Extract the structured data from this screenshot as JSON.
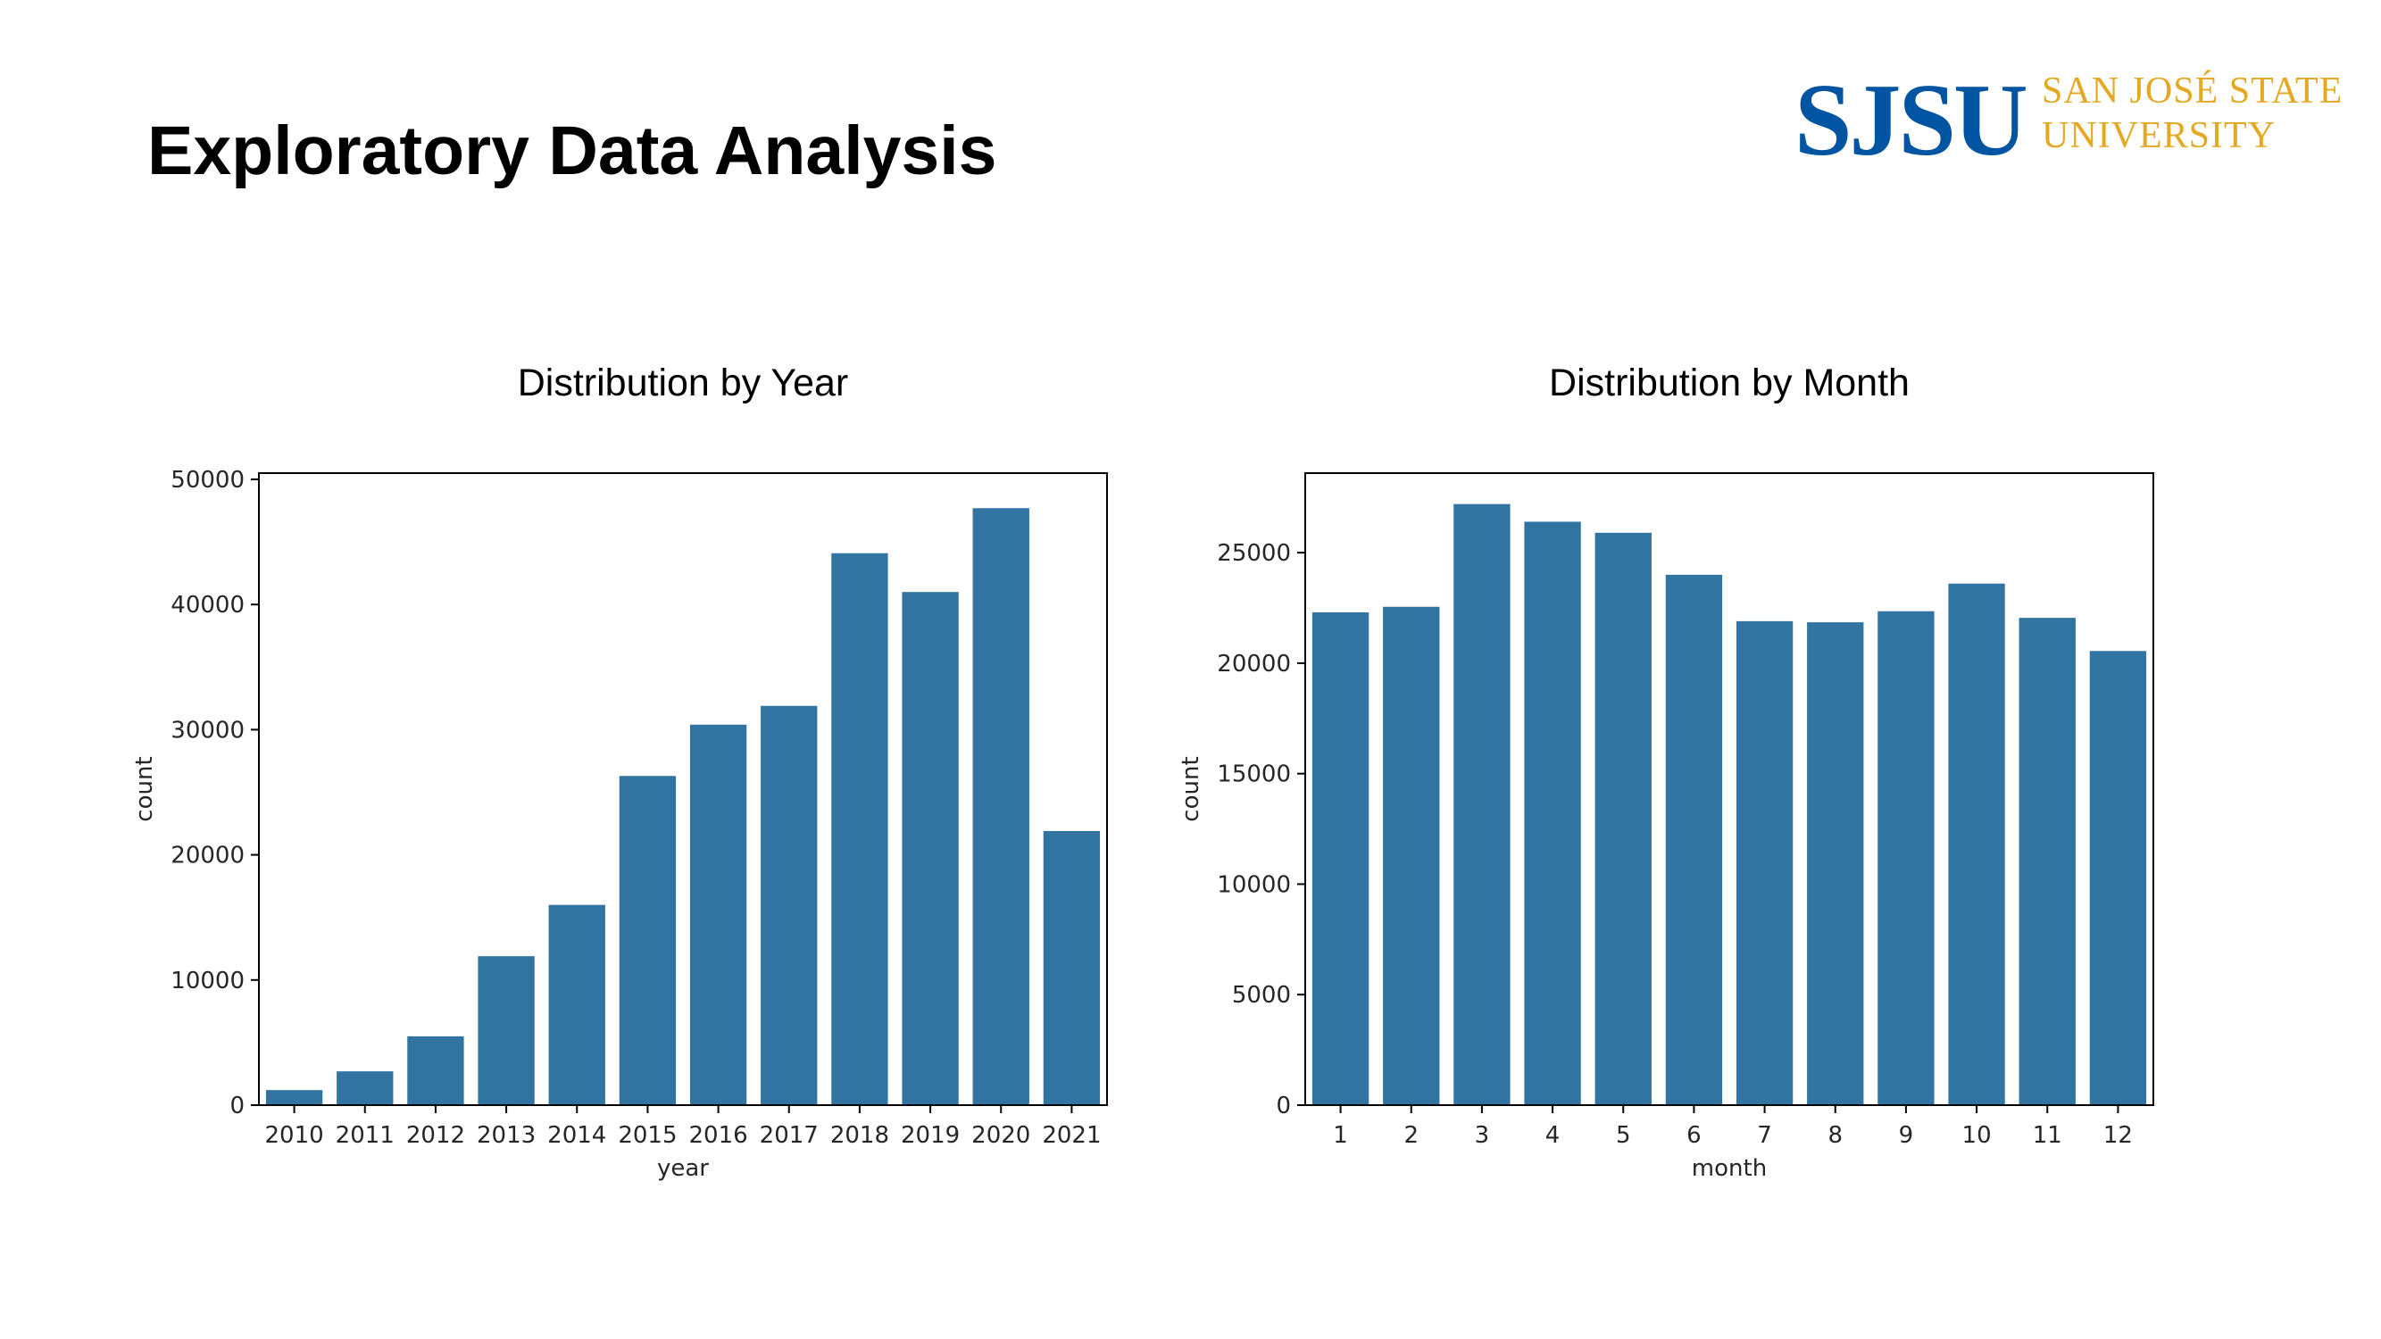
{
  "slide": {
    "title": "Exploratory Data Analysis",
    "logo": {
      "mark": "SJSU",
      "line1": "SAN JOSÉ STATE",
      "line2": "UNIVERSITY",
      "mark_color": "#0055a2",
      "text_color": "#e5a823"
    }
  },
  "colors": {
    "bar": "#3274a1",
    "axis": "#000000",
    "text": "#262626"
  },
  "chart_data": [
    {
      "type": "bar",
      "title": "Distribution by Year",
      "xlabel": "year",
      "ylabel": "count",
      "categories": [
        "2010",
        "2011",
        "2012",
        "2013",
        "2014",
        "2015",
        "2016",
        "2017",
        "2018",
        "2019",
        "2020",
        "2021"
      ],
      "values": [
        1200,
        2700,
        5500,
        11900,
        16000,
        26300,
        30400,
        31900,
        44100,
        41000,
        47700,
        21900
      ],
      "ylim": [
        0,
        50500
      ],
      "yticks": [
        0,
        10000,
        20000,
        30000,
        40000,
        50000
      ],
      "grid": false,
      "legend": "none"
    },
    {
      "type": "bar",
      "title": "Distribution by Month",
      "xlabel": "month",
      "ylabel": "count",
      "categories": [
        "1",
        "2",
        "3",
        "4",
        "5",
        "6",
        "7",
        "8",
        "9",
        "10",
        "11",
        "12"
      ],
      "values": [
        22300,
        22550,
        27200,
        26400,
        25900,
        24000,
        21900,
        21850,
        22350,
        23600,
        22050,
        20550
      ],
      "ylim": [
        0,
        28600
      ],
      "yticks": [
        0,
        5000,
        10000,
        15000,
        20000,
        25000
      ],
      "grid": false,
      "legend": "none"
    }
  ]
}
